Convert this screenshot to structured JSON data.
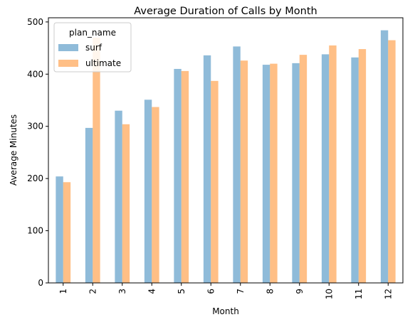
{
  "chart_data": {
    "type": "bar",
    "title": "Average Duration of Calls by Month",
    "xlabel": "Month",
    "ylabel": "Average Minutes",
    "categories": [
      "1",
      "2",
      "3",
      "4",
      "5",
      "6",
      "7",
      "8",
      "9",
      "10",
      "11",
      "12"
    ],
    "series": [
      {
        "name": "surf",
        "values": [
          204,
          297,
          330,
          351,
          410,
          436,
          453,
          418,
          421,
          438,
          432,
          484
        ],
        "color": "#1f77b4"
      },
      {
        "name": "ultimate",
        "values": [
          193,
          470,
          304,
          337,
          406,
          387,
          426,
          420,
          437,
          455,
          448,
          465
        ],
        "color": "#ff7f0e"
      }
    ],
    "bar_opacity": 0.5,
    "ylim": [
      0,
      508
    ],
    "yticks": [
      0,
      100,
      200,
      300,
      400,
      500
    ],
    "grid": false,
    "legend": {
      "title": "plan_name",
      "placement": "top-left"
    }
  }
}
